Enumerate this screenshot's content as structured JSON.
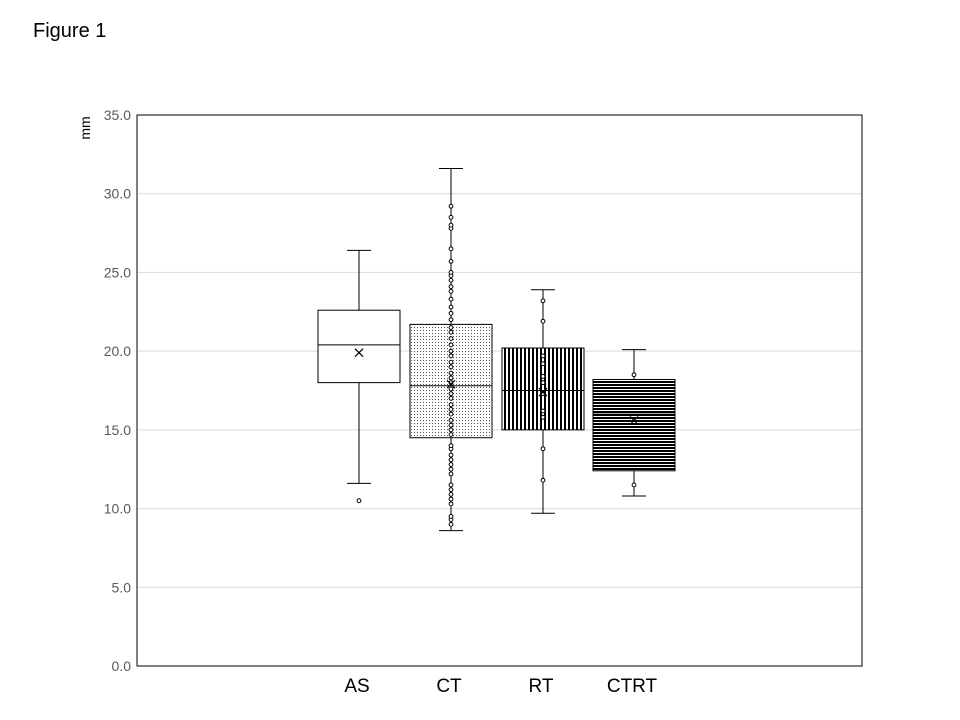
{
  "figure_label": "Figure 1",
  "chart_data": {
    "type": "boxplot",
    "title": "",
    "xlabel": "",
    "ylabel": "mm",
    "ylim": [
      0,
      35
    ],
    "yticks": [
      "0.0",
      "5.0",
      "10.0",
      "15.0",
      "20.0",
      "25.0",
      "30.0",
      "35.0"
    ],
    "grid": true,
    "legend": "none",
    "categories": [
      "AS",
      "CT",
      "RT",
      "CTRT"
    ],
    "boxes": [
      {
        "category": "AS",
        "fill": "plain",
        "whisker_low": 11.6,
        "q1": 18.0,
        "median": 20.4,
        "q3": 22.6,
        "whisker_high": 26.4,
        "mean": 19.9,
        "points": [
          10.5
        ],
        "outliers": [
          10.5
        ]
      },
      {
        "category": "CT",
        "fill": "dots",
        "whisker_low": 8.6,
        "q1": 14.5,
        "median": 17.8,
        "q3": 21.7,
        "whisker_high": 31.6,
        "mean": 17.9,
        "points": [
          9.0,
          9.3,
          9.5,
          10.3,
          10.6,
          10.9,
          11.2,
          11.5,
          12.2,
          12.5,
          12.8,
          13.1,
          13.4,
          13.8,
          14.0,
          14.7,
          15.0,
          15.3,
          15.6,
          16.0,
          16.3,
          16.6,
          17.0,
          17.3,
          17.6,
          18.0,
          18.3,
          18.6,
          19.0,
          19.3,
          19.7,
          20.0,
          20.4,
          20.8,
          21.2,
          21.5,
          22.0,
          22.4,
          22.8,
          23.3,
          23.8,
          24.1,
          24.5,
          24.8,
          25.0,
          25.7,
          26.5,
          27.8,
          28.0,
          28.5,
          29.2
        ],
        "outliers": []
      },
      {
        "category": "RT",
        "fill": "vertical-lines",
        "whisker_low": 9.7,
        "q1": 15.0,
        "median": 17.5,
        "q3": 20.2,
        "whisker_high": 23.9,
        "mean": 17.4,
        "points": [
          11.8,
          13.8,
          15.8,
          16.2,
          17.3,
          18.0,
          18.4,
          19.2,
          19.7,
          21.9,
          23.2
        ],
        "outliers": []
      },
      {
        "category": "CTRT",
        "fill": "horizontal-lines",
        "whisker_low": 10.8,
        "q1": 12.4,
        "median": 16.0,
        "q3": 18.2,
        "whisker_high": 20.1,
        "mean": 15.6,
        "points": [
          11.5,
          18.5
        ],
        "outliers": []
      }
    ]
  }
}
